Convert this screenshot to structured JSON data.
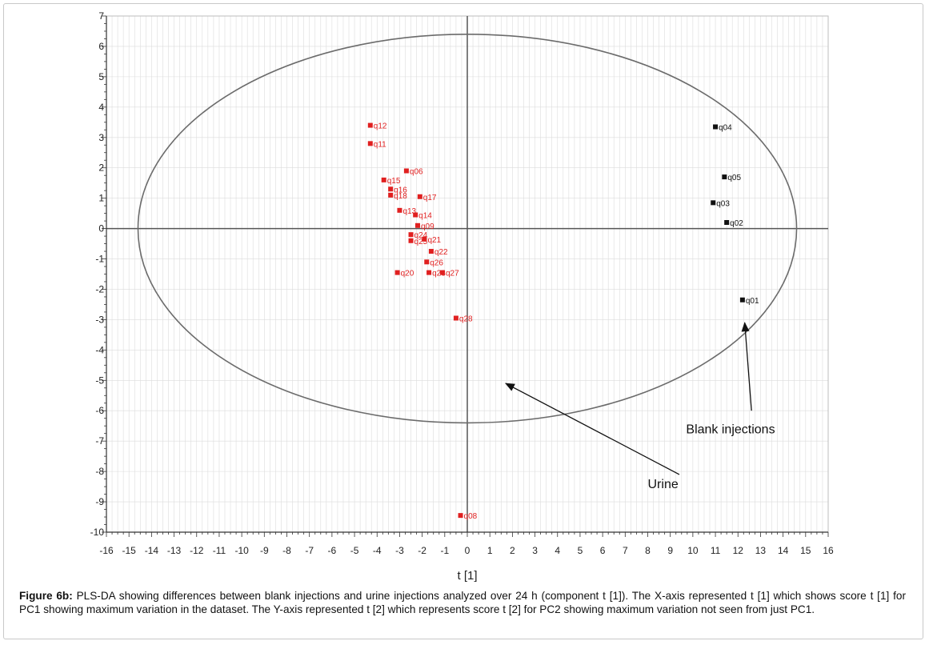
{
  "chart_data": {
    "type": "scatter",
    "xlabel": "t [1]",
    "ylabel": "",
    "xlim": [
      -16,
      16
    ],
    "ylim": [
      -10,
      7
    ],
    "x_ticks": [
      "-16",
      "-15",
      "-14",
      "-13",
      "-12",
      "-11",
      "-10",
      "-9",
      "-8",
      "-7",
      "-6",
      "-5",
      "-4",
      "-3",
      "-2",
      "-1",
      "0",
      "1",
      "2",
      "3",
      "4",
      "5",
      "6",
      "7",
      "8",
      "9",
      "10",
      "11",
      "12",
      "13",
      "14",
      "15",
      "16"
    ],
    "y_ticks": [
      "7",
      "6",
      "5",
      "4",
      "3",
      "2",
      "1",
      "0",
      "-1",
      "-2",
      "-3",
      "-4",
      "-5",
      "-6",
      "-7",
      "-8",
      "-9",
      "-10"
    ],
    "grid": true,
    "ellipse": {
      "center": [
        0,
        0
      ],
      "rx": 14.6,
      "ry": 6.4
    },
    "series": [
      {
        "color": "#e02020",
        "points": [
          {
            "label": "q12",
            "x": -4.3,
            "y": 3.4
          },
          {
            "label": "q11",
            "x": -4.3,
            "y": 2.8
          },
          {
            "label": "q06",
            "x": -2.7,
            "y": 1.9
          },
          {
            "label": "q15",
            "x": -3.7,
            "y": 1.6
          },
          {
            "label": "q16",
            "x": -3.4,
            "y": 1.3
          },
          {
            "label": "q18",
            "x": -3.4,
            "y": 1.1
          },
          {
            "label": "q17",
            "x": -2.1,
            "y": 1.05
          },
          {
            "label": "q13",
            "x": -3.0,
            "y": 0.6
          },
          {
            "label": "q14",
            "x": -2.3,
            "y": 0.45
          },
          {
            "label": "q09",
            "x": -2.2,
            "y": 0.1
          },
          {
            "label": "q24",
            "x": -2.5,
            "y": -0.2
          },
          {
            "label": "q25",
            "x": -2.5,
            "y": -0.4
          },
          {
            "label": "q21",
            "x": -1.9,
            "y": -0.35
          },
          {
            "label": "q22",
            "x": -1.6,
            "y": -0.75
          },
          {
            "label": "q26",
            "x": -1.8,
            "y": -1.1
          },
          {
            "label": "q20",
            "x": -3.1,
            "y": -1.45
          },
          {
            "label": "q23",
            "x": -1.7,
            "y": -1.45
          },
          {
            "label": "q27",
            "x": -1.1,
            "y": -1.45
          },
          {
            "label": "q28",
            "x": -0.5,
            "y": -2.95
          },
          {
            "label": "q08",
            "x": -0.3,
            "y": -9.45
          }
        ]
      },
      {
        "color": "#111111",
        "points": [
          {
            "label": "q04",
            "x": 11.0,
            "y": 3.35
          },
          {
            "label": "q05",
            "x": 11.4,
            "y": 1.7
          },
          {
            "label": "q03",
            "x": 10.9,
            "y": 0.85
          },
          {
            "label": "q02",
            "x": 11.5,
            "y": 0.2
          },
          {
            "label": "q01",
            "x": 12.2,
            "y": -2.35
          }
        ]
      }
    ],
    "annotations": [
      {
        "text": "Urine",
        "arrow_from": [
          9.4,
          -8.1
        ],
        "arrow_to": [
          1.7,
          -5.1
        ]
      },
      {
        "text": "Blank injections",
        "arrow_from": [
          12.6,
          -6.0
        ],
        "arrow_to": [
          12.3,
          -3.1
        ]
      }
    ]
  },
  "caption": {
    "label": "Figure 6b:",
    "text": " PLS-DA showing differences between blank injections and urine injections analyzed over 24 h (component t [1]). The X-axis represented t [1] which shows score t [1] for PC1 showing maximum variation in the dataset. The Y-axis represented t [2] which represents score t [2] for PC2 showing maximum variation not seen from just PC1."
  }
}
